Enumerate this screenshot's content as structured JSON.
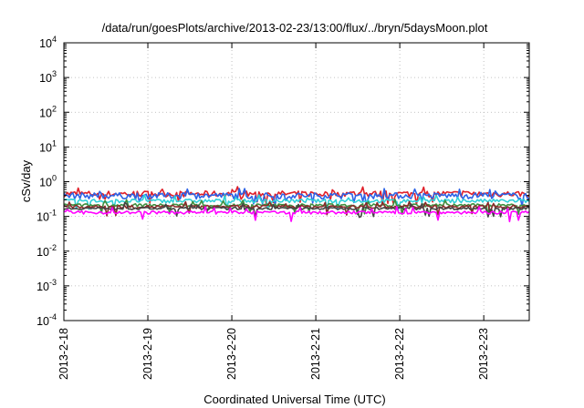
{
  "chart_data": {
    "type": "line",
    "title": "/data/run/goesPlots/archive/2013-02-23/13:00/flux/../bryn/5daysMoon.plot",
    "xlabel": "Coordinated Universal Time (UTC)",
    "ylabel": "cSv/day",
    "yscale": "log",
    "ylim": [
      0.0001,
      10000
    ],
    "xlim": [
      "2013-02-18 00:00",
      "2013-02-23 13:00"
    ],
    "grid": true,
    "y_ticks": [
      {
        "base": "10",
        "exp": "4"
      },
      {
        "base": "10",
        "exp": "3"
      },
      {
        "base": "10",
        "exp": "2"
      },
      {
        "base": "10",
        "exp": "1"
      },
      {
        "base": "10",
        "exp": "0"
      },
      {
        "base": "10",
        "exp": "-1"
      },
      {
        "base": "10",
        "exp": "-2"
      },
      {
        "base": "10",
        "exp": "-3"
      },
      {
        "base": "10",
        "exp": "-4"
      }
    ],
    "x_ticks": [
      "2013-2-18",
      "2013-2-19",
      "2013-2-20",
      "2013-2-21",
      "2013-2-22",
      "2013-2-23"
    ],
    "series": [
      {
        "color": "#e0202a",
        "level": 0.45,
        "spread": 0.2
      },
      {
        "color": "#2d63e6",
        "level": 0.4,
        "spread": 0.2
      },
      {
        "color": "#30d0d8",
        "level": 0.28,
        "spread": 0.12
      },
      {
        "color": "#3f8f3f",
        "level": 0.21,
        "spread": 0.1
      },
      {
        "color": "#8a2a2a",
        "level": 0.19,
        "spread": 0.1
      },
      {
        "color": "#444444",
        "level": 0.17,
        "spread": 0.08
      },
      {
        "color": "#ff00ff",
        "level": 0.13,
        "spread": 0.1
      }
    ]
  }
}
